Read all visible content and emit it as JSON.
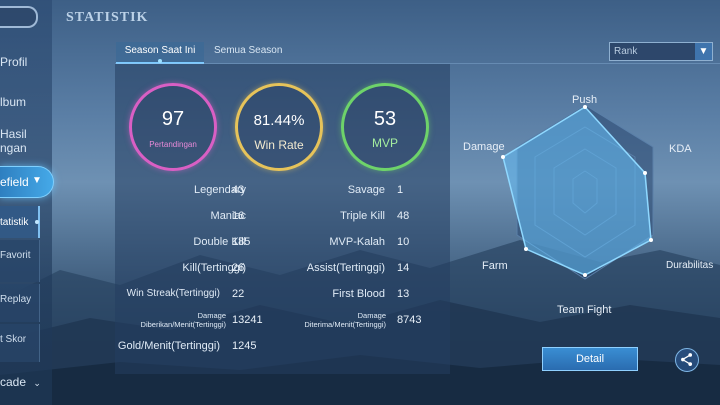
{
  "header": {
    "title": "STATISTIK"
  },
  "sidebar": {
    "items": [
      {
        "label": "Profil"
      },
      {
        "label": "lbum"
      },
      {
        "label": "Hasil"
      },
      {
        "label": "ngan"
      },
      {
        "label": "efield"
      },
      {
        "label": "tatistik"
      },
      {
        "label": "Favorit"
      },
      {
        "label": "Replay"
      },
      {
        "label": "t Skor"
      },
      {
        "label": "cade"
      }
    ]
  },
  "tabs": {
    "active": "Season Saat Ini",
    "inactive": "Semua Season"
  },
  "rank_select": {
    "value": "Rank"
  },
  "summary": {
    "matches": {
      "value": "97",
      "label": "Pertandingan"
    },
    "winrate": {
      "value": "81.44%",
      "label": "Win Rate"
    },
    "mvp": {
      "value": "53",
      "label": "MVP"
    }
  },
  "stats": {
    "legendary": {
      "label": "Legendary",
      "value": "43"
    },
    "savage": {
      "label": "Savage",
      "value": "1"
    },
    "maniac": {
      "label": "Maniac",
      "value": "16"
    },
    "triple_kill": {
      "label": "Triple Kill",
      "value": "48"
    },
    "double_kill": {
      "label": "Double Kill",
      "value": "185"
    },
    "mvp_kalah": {
      "label": "MVP-Kalah",
      "value": "10"
    },
    "kill_tertinggi": {
      "label": "Kill(Tertinggi)",
      "value": "26"
    },
    "assist_tertinggi": {
      "label": "Assist(Tertinggi)",
      "value": "14"
    },
    "win_streak": {
      "label": "Win Streak(Tertinggi)",
      "value": "22"
    },
    "first_blood": {
      "label": "First Blood",
      "value": "13"
    },
    "damage_diberikan": {
      "label": "Damage Diberikan/Menit(Tertinggi)",
      "value": "13241"
    },
    "damage_diterima": {
      "label": "Damage Diterima/Menit(Tertinggi)",
      "value": "8743"
    },
    "gold_menit": {
      "label": "Gold/Menit(Tertinggi)",
      "value": "1245"
    }
  },
  "radar": {
    "labels": {
      "push": "Push",
      "kda": "KDA",
      "durability": "Durabilitas",
      "teamfight": "Team Fight",
      "farm": "Farm",
      "damage": "Damage"
    }
  },
  "buttons": {
    "detail": "Detail"
  },
  "icons": {
    "share": "share-icon",
    "back": "back-icon",
    "chevron": "chevron-down-icon"
  },
  "colors": {
    "matches_ring": "#d95fc4",
    "winrate_ring": "#e6c35a",
    "mvp_ring": "#6ed36a",
    "accent": "#45a9e8"
  }
}
